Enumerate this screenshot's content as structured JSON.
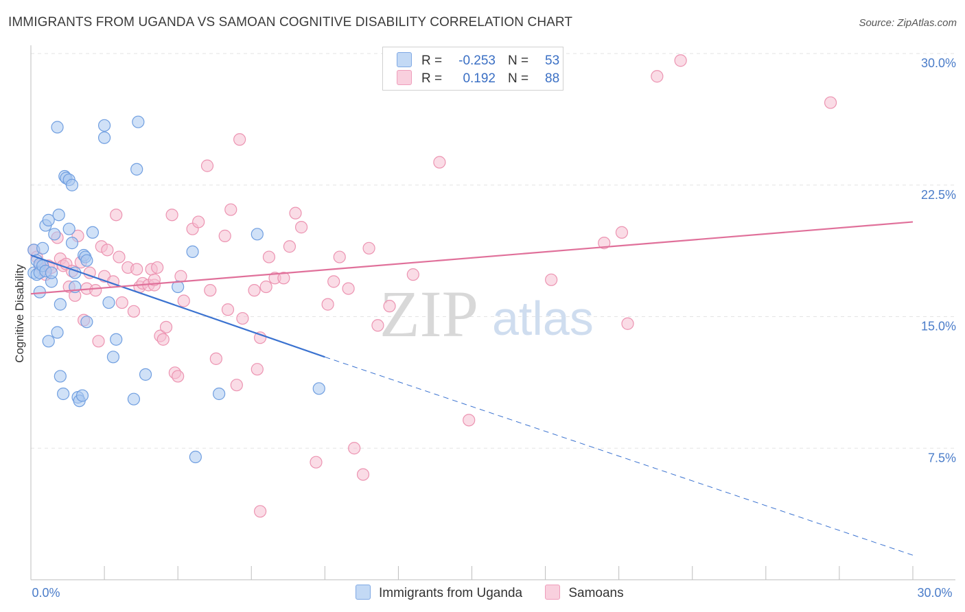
{
  "title": "IMMIGRANTS FROM UGANDA VS SAMOAN COGNITIVE DISABILITY CORRELATION CHART",
  "source": "Source: ZipAtlas.com",
  "watermark": {
    "zip": "ZIP",
    "atlas": "atlas"
  },
  "legend": {
    "uganda": {
      "r_label": "R =",
      "r_value": "-0.253",
      "n_label": "N =",
      "n_value": "53"
    },
    "samoa": {
      "r_label": "R =",
      "r_value": "0.192",
      "n_label": "N =",
      "n_value": "88"
    }
  },
  "colors": {
    "uganda_fill": "#a9c8f0",
    "uganda_stroke": "#6f9ee0",
    "uganda_line": "#3a72d0",
    "samoa_fill": "#f6c0d2",
    "samoa_stroke": "#ec93b1",
    "samoa_line": "#e0709a",
    "tick_label": "#4a7cc9",
    "grid": "#e3e3e3"
  },
  "chart_data": {
    "type": "scatter",
    "xlabel": "",
    "ylabel": "Cognitive Disability",
    "xlim": [
      0,
      30
    ],
    "ylim": [
      0,
      30
    ],
    "x_tick_labels": [
      {
        "value": 0,
        "label": "0.0%"
      },
      {
        "value": 30,
        "label": "30.0%"
      }
    ],
    "y_tick_labels": [
      {
        "value": 7.5,
        "label": "7.5%"
      },
      {
        "value": 15,
        "label": "15.0%"
      },
      {
        "value": 22.5,
        "label": "22.5%"
      },
      {
        "value": 30,
        "label": "30.0%"
      }
    ],
    "grid": true,
    "legend_position": "top-center",
    "series": [
      {
        "name": "Immigrants from Uganda",
        "points": [
          [
            0.1,
            18.8
          ],
          [
            0.1,
            17.5
          ],
          [
            0.2,
            17.4
          ],
          [
            0.2,
            18.2
          ],
          [
            0.3,
            18.0
          ],
          [
            0.3,
            17.5
          ],
          [
            0.3,
            16.4
          ],
          [
            0.4,
            18.9
          ],
          [
            0.4,
            17.9
          ],
          [
            0.5,
            17.6
          ],
          [
            0.5,
            20.2
          ],
          [
            0.6,
            20.5
          ],
          [
            0.6,
            13.6
          ],
          [
            0.7,
            17.0
          ],
          [
            0.7,
            17.5
          ],
          [
            0.8,
            19.7
          ],
          [
            0.9,
            14.1
          ],
          [
            0.9,
            25.8
          ],
          [
            0.95,
            20.8
          ],
          [
            1.0,
            15.7
          ],
          [
            1.0,
            11.6
          ],
          [
            1.1,
            10.6
          ],
          [
            1.15,
            23.0
          ],
          [
            1.2,
            22.9
          ],
          [
            1.3,
            20.0
          ],
          [
            1.3,
            22.8
          ],
          [
            1.4,
            22.5
          ],
          [
            1.4,
            19.2
          ],
          [
            1.5,
            16.7
          ],
          [
            1.5,
            17.5
          ],
          [
            1.6,
            10.4
          ],
          [
            1.65,
            10.2
          ],
          [
            1.75,
            10.5
          ],
          [
            1.8,
            18.5
          ],
          [
            1.85,
            18.4
          ],
          [
            1.9,
            14.7
          ],
          [
            2.1,
            19.8
          ],
          [
            2.5,
            25.9
          ],
          [
            2.5,
            25.2
          ],
          [
            2.65,
            15.8
          ],
          [
            2.8,
            12.7
          ],
          [
            2.9,
            13.7
          ],
          [
            3.5,
            10.3
          ],
          [
            3.6,
            23.4
          ],
          [
            3.65,
            26.1
          ],
          [
            3.9,
            11.7
          ],
          [
            5.0,
            16.7
          ],
          [
            5.5,
            18.7
          ],
          [
            5.6,
            7.0
          ],
          [
            6.4,
            10.6
          ],
          [
            7.7,
            19.7
          ],
          [
            9.8,
            10.9
          ],
          [
            1.9,
            18.2
          ]
        ]
      },
      {
        "name": "Samoans",
        "points": [
          [
            0.1,
            18.8
          ],
          [
            0.2,
            18.4
          ],
          [
            0.3,
            17.9
          ],
          [
            0.4,
            17.7
          ],
          [
            0.5,
            17.4
          ],
          [
            0.6,
            17.9
          ],
          [
            0.7,
            17.8
          ],
          [
            0.9,
            19.5
          ],
          [
            1.0,
            18.3
          ],
          [
            1.1,
            17.9
          ],
          [
            1.2,
            18.0
          ],
          [
            1.3,
            16.7
          ],
          [
            1.4,
            17.6
          ],
          [
            1.5,
            16.2
          ],
          [
            1.6,
            19.6
          ],
          [
            1.7,
            18.1
          ],
          [
            1.8,
            14.8
          ],
          [
            1.9,
            16.6
          ],
          [
            2.0,
            17.5
          ],
          [
            2.2,
            16.5
          ],
          [
            2.3,
            13.6
          ],
          [
            2.4,
            19.0
          ],
          [
            2.5,
            17.3
          ],
          [
            2.6,
            18.8
          ],
          [
            2.8,
            17.0
          ],
          [
            2.9,
            20.8
          ],
          [
            3.0,
            18.4
          ],
          [
            3.1,
            15.8
          ],
          [
            3.3,
            17.8
          ],
          [
            3.5,
            15.3
          ],
          [
            3.6,
            17.7
          ],
          [
            3.7,
            16.7
          ],
          [
            3.8,
            16.9
          ],
          [
            4.0,
            16.8
          ],
          [
            4.1,
            17.7
          ],
          [
            4.2,
            16.8
          ],
          [
            4.3,
            17.8
          ],
          [
            4.4,
            13.9
          ],
          [
            4.5,
            13.7
          ],
          [
            4.6,
            14.4
          ],
          [
            4.8,
            20.8
          ],
          [
            4.9,
            11.8
          ],
          [
            5.0,
            11.6
          ],
          [
            5.1,
            17.3
          ],
          [
            5.2,
            15.9
          ],
          [
            5.5,
            20.0
          ],
          [
            5.7,
            20.4
          ],
          [
            6.0,
            23.6
          ],
          [
            6.1,
            16.5
          ],
          [
            6.3,
            12.6
          ],
          [
            6.6,
            19.6
          ],
          [
            6.7,
            15.4
          ],
          [
            6.8,
            21.1
          ],
          [
            7.0,
            11.1
          ],
          [
            7.1,
            25.1
          ],
          [
            7.2,
            14.9
          ],
          [
            7.6,
            16.5
          ],
          [
            7.7,
            12.0
          ],
          [
            7.8,
            13.8
          ],
          [
            8.0,
            16.7
          ],
          [
            8.1,
            18.4
          ],
          [
            8.3,
            17.2
          ],
          [
            8.6,
            17.2
          ],
          [
            8.8,
            19.0
          ],
          [
            9.0,
            20.9
          ],
          [
            9.2,
            20.1
          ],
          [
            9.7,
            6.7
          ],
          [
            10.1,
            15.7
          ],
          [
            10.3,
            17.0
          ],
          [
            10.5,
            18.4
          ],
          [
            10.8,
            16.6
          ],
          [
            11.0,
            7.5
          ],
          [
            11.3,
            6.0
          ],
          [
            11.5,
            18.9
          ],
          [
            11.8,
            14.5
          ],
          [
            12.2,
            15.6
          ],
          [
            13.0,
            17.4
          ],
          [
            13.9,
            23.8
          ],
          [
            14.9,
            9.1
          ],
          [
            17.7,
            17.1
          ],
          [
            19.5,
            19.2
          ],
          [
            20.1,
            19.8
          ],
          [
            20.3,
            14.6
          ],
          [
            21.3,
            28.7
          ],
          [
            22.1,
            29.6
          ],
          [
            27.2,
            27.2
          ],
          [
            4.2,
            17.1
          ],
          [
            7.8,
            3.9
          ]
        ]
      }
    ],
    "trend_lines": [
      {
        "series": "Immigrants from Uganda",
        "solid": [
          [
            0,
            18.5
          ],
          [
            10,
            12.7
          ]
        ],
        "dashed": [
          [
            10,
            12.7
          ],
          [
            30,
            1.4
          ]
        ]
      },
      {
        "series": "Samoans",
        "solid": [
          [
            0,
            16.3
          ],
          [
            30,
            20.4
          ]
        ]
      }
    ]
  },
  "bottom_legend": [
    {
      "label": "Immigrants from Uganda",
      "key": "uganda"
    },
    {
      "label": "Samoans",
      "key": "samoa"
    }
  ]
}
